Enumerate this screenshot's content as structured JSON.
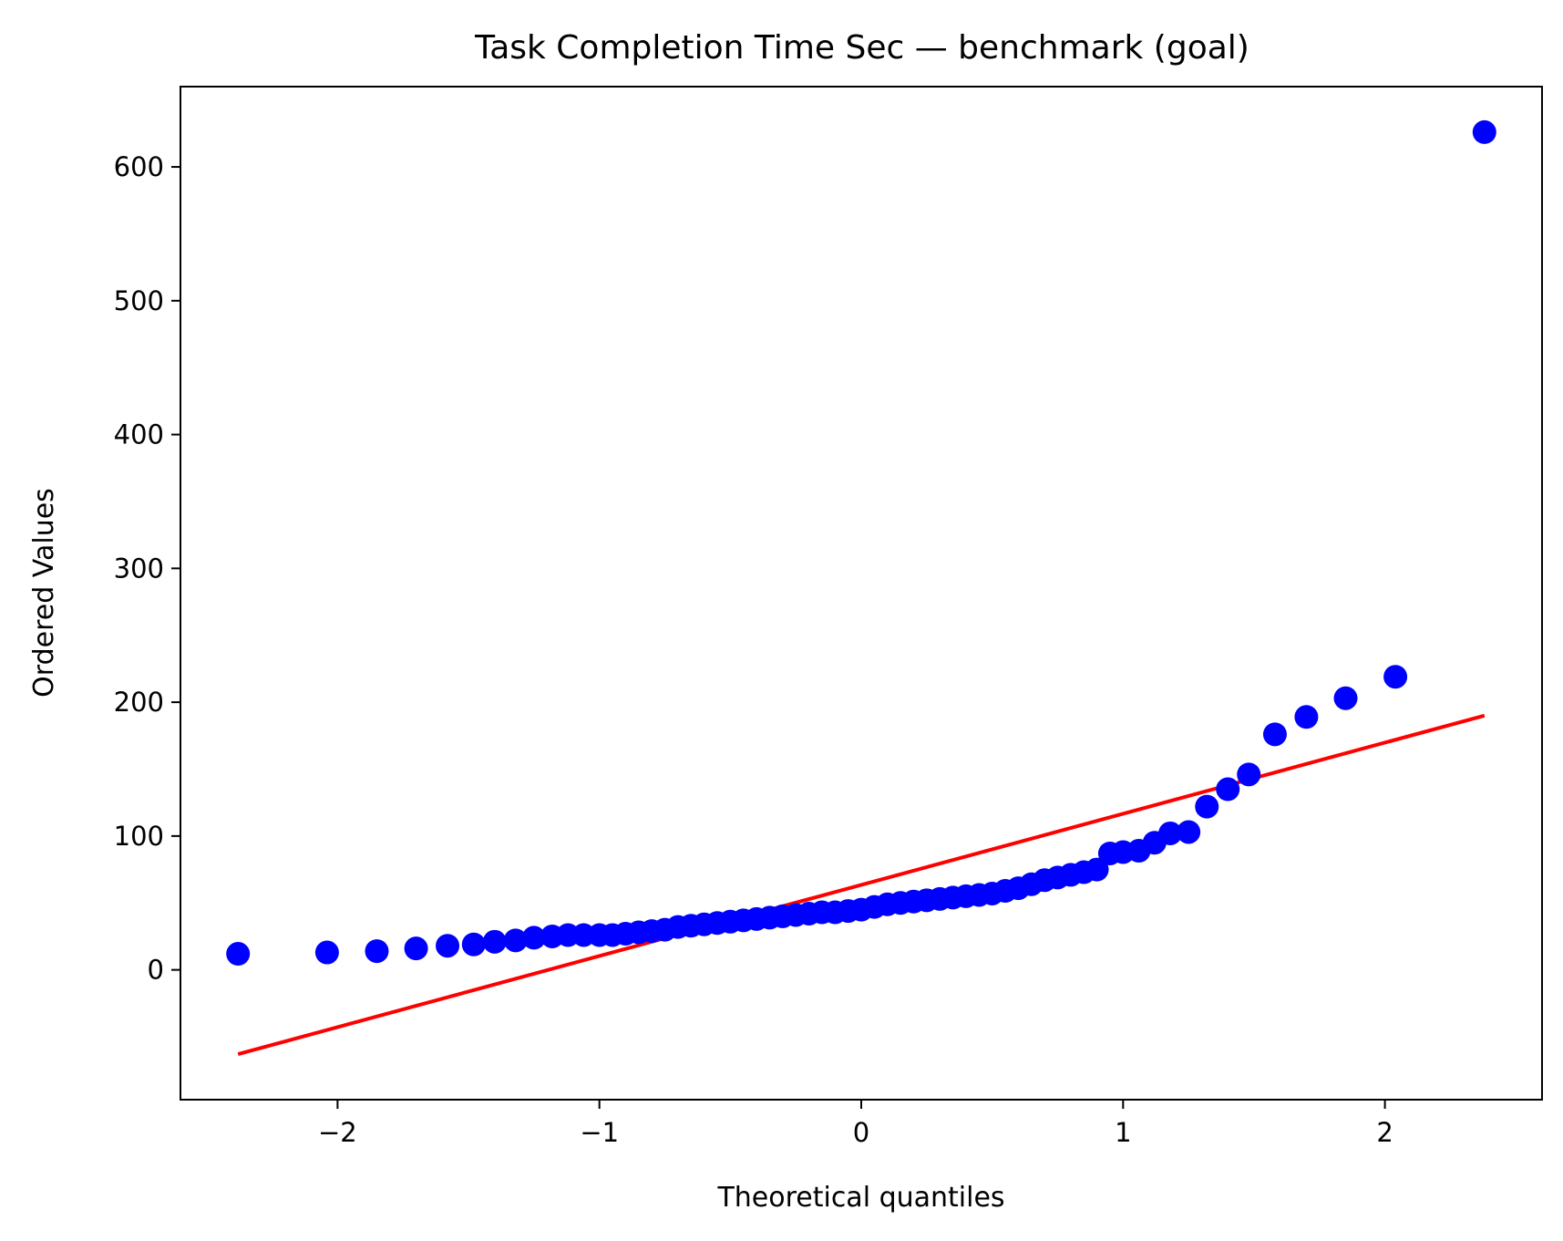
{
  "chart_data": {
    "type": "scatter",
    "title": "Task Completion Time Sec — benchmark (goal)",
    "xlabel": "Theoretical quantiles",
    "ylabel": "Ordered Values",
    "xlim": [
      -2.6,
      2.6
    ],
    "ylim": [
      -97,
      660
    ],
    "xticks": [
      -2,
      -1,
      0,
      1,
      2
    ],
    "xtick_labels": [
      "−2",
      "−1",
      "0",
      "1",
      "2"
    ],
    "yticks": [
      0,
      100,
      200,
      300,
      400,
      500,
      600
    ],
    "ytick_labels": [
      "0",
      "100",
      "200",
      "300",
      "400",
      "500",
      "600"
    ],
    "grid": false,
    "series": [
      {
        "kind": "points",
        "color": "#0000ff",
        "x": [
          -2.38,
          -2.04,
          -1.85,
          -1.7,
          -1.58,
          -1.48,
          -1.4,
          -1.32,
          -1.25,
          -1.18,
          -1.12,
          -1.06,
          -1.0,
          -0.95,
          -0.9,
          -0.85,
          -0.8,
          -0.75,
          -0.7,
          -0.65,
          -0.6,
          -0.55,
          -0.5,
          -0.45,
          -0.4,
          -0.35,
          -0.3,
          -0.25,
          -0.2,
          -0.15,
          -0.1,
          -0.05,
          0.0,
          0.05,
          0.1,
          0.15,
          0.2,
          0.25,
          0.3,
          0.35,
          0.4,
          0.45,
          0.5,
          0.55,
          0.6,
          0.65,
          0.7,
          0.75,
          0.8,
          0.85,
          0.9,
          0.95,
          1.0,
          1.06,
          1.12,
          1.18,
          1.25,
          1.32,
          1.4,
          1.48,
          1.58,
          1.7,
          1.85,
          2.04,
          2.38
        ],
        "y": [
          12,
          13,
          14,
          16,
          18,
          19,
          21,
          22,
          24,
          25,
          26,
          26,
          26,
          26,
          27,
          28,
          29,
          30,
          32,
          33,
          34,
          35,
          36,
          37,
          38,
          39,
          40,
          41,
          42,
          43,
          43,
          44,
          45,
          47,
          49,
          50,
          51,
          52,
          53,
          54,
          55,
          56,
          57,
          59,
          61,
          64,
          67,
          69,
          71,
          73,
          75,
          87,
          88,
          89,
          95,
          102,
          103,
          122,
          135,
          146,
          176,
          189,
          203,
          219,
          626
        ]
      },
      {
        "kind": "fit-line",
        "color": "#ff0000",
        "x": [
          -2.38,
          2.38
        ],
        "y": [
          -63,
          190
        ]
      }
    ]
  }
}
